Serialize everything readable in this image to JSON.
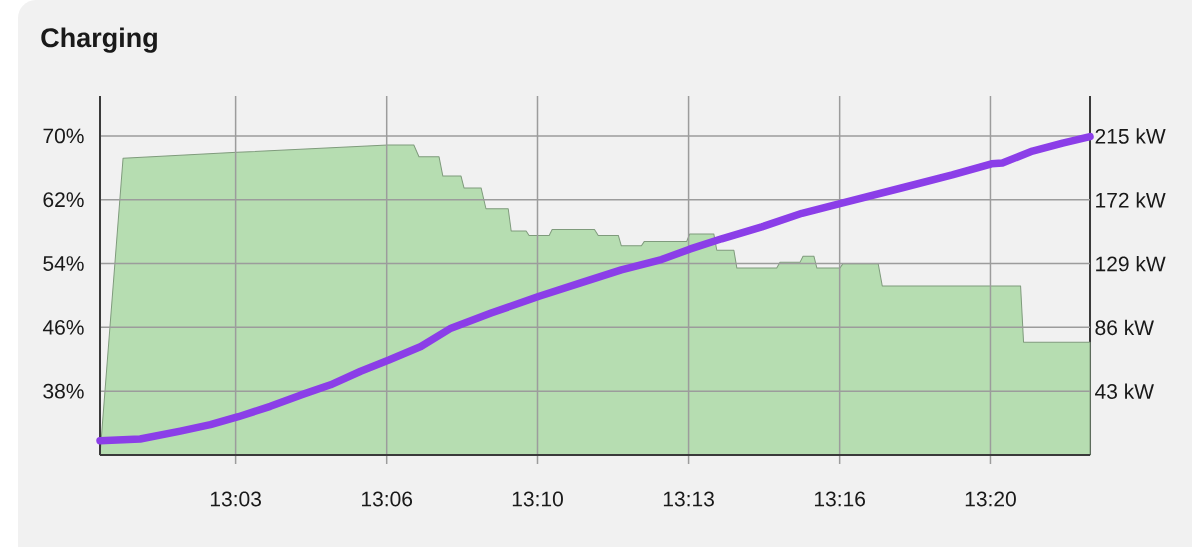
{
  "chart_data": {
    "type": "line",
    "title": "Charging",
    "xlim": [
      13,
      13.365
    ],
    "xticks": [
      {
        "value": 13.05,
        "label": "13:03"
      },
      {
        "value": 13.1057,
        "label": "13:06"
      },
      {
        "value": 13.1613,
        "label": "13:10"
      },
      {
        "value": 13.217,
        "label": "13:13"
      },
      {
        "value": 13.2727,
        "label": "13:16"
      },
      {
        "value": 13.3283,
        "label": "13:20"
      }
    ],
    "ylim": [
      30,
      75
    ],
    "yticks": [
      {
        "value": 38,
        "label": "38%"
      },
      {
        "value": 46,
        "label": "46%"
      },
      {
        "value": 54,
        "label": "54%"
      },
      {
        "value": 62,
        "label": "62%"
      },
      {
        "value": 70,
        "label": "70%"
      }
    ],
    "y2lim": [
      0,
      242
    ],
    "y2ticks": [
      {
        "value": 43,
        "label": "43 kW"
      },
      {
        "value": 86,
        "label": "86 kW"
      },
      {
        "value": 129,
        "label": "129 kW"
      },
      {
        "value": 172,
        "label": "172 kW"
      },
      {
        "value": 215,
        "label": "215 kW"
      }
    ],
    "grid": true,
    "series": [
      {
        "type": "area",
        "axis": "y2",
        "color": "#b6ddb1",
        "x": [
          13.0,
          13.0085,
          13.0506,
          13.1061,
          13.1157,
          13.1176,
          13.125,
          13.1264,
          13.1331,
          13.1342,
          13.1405,
          13.1423,
          13.1505,
          13.1516,
          13.1571,
          13.1582,
          13.1656,
          13.1667,
          13.1823,
          13.1837,
          13.1911,
          13.1922,
          13.1996,
          13.2007,
          13.2163,
          13.2174,
          13.2263,
          13.2274,
          13.2337,
          13.2348,
          13.2495,
          13.2507,
          13.2581,
          13.2592,
          13.2632,
          13.2643,
          13.2728,
          13.2739,
          13.2869,
          13.2884,
          13.3394,
          13.3405,
          13.365
        ],
        "values": [
          0,
          200,
          204,
          209,
          209,
          201,
          201,
          188,
          188,
          180,
          180,
          166,
          166,
          151,
          151,
          148,
          148,
          152,
          152,
          148,
          148,
          141,
          141,
          144,
          144,
          149,
          149,
          138,
          138,
          126,
          126,
          130,
          130,
          134,
          134,
          126,
          126,
          129,
          129,
          114,
          114,
          76,
          76
        ]
      },
      {
        "type": "line",
        "color": "#8b3ee8",
        "x": [
          13.0,
          13.0148,
          13.0296,
          13.0407,
          13.051,
          13.0628,
          13.0739,
          13.085,
          13.0961,
          13.1065,
          13.1183,
          13.1294,
          13.1442,
          13.1619,
          13.1775,
          13.1922,
          13.207,
          13.2174,
          13.2292,
          13.244,
          13.2588,
          13.2728,
          13.2958,
          13.3142,
          13.3287,
          13.3327,
          13.3438,
          13.3549,
          13.365
        ],
        "values": [
          31.8,
          32.0,
          33.0,
          33.8,
          34.8,
          36.1,
          37.5,
          38.8,
          40.5,
          41.9,
          43.6,
          45.9,
          47.8,
          49.9,
          51.6,
          53.2,
          54.5,
          55.8,
          57.1,
          58.6,
          60.3,
          61.5,
          63.5,
          65.1,
          66.5,
          66.6,
          68.1,
          69.1,
          69.9
        ]
      }
    ]
  }
}
